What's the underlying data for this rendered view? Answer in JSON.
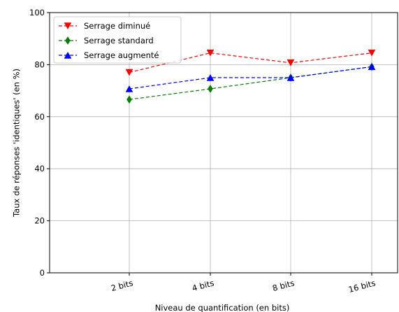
{
  "chart_data": {
    "type": "line",
    "categories": [
      "2 bits",
      "4 bits",
      "8 bits",
      "16 bits"
    ],
    "series": [
      {
        "name": "Serrage diminué",
        "values": [
          77,
          84.5,
          80.7,
          84.5
        ],
        "color": "#ff0000",
        "marker": "triangle-down"
      },
      {
        "name": "Serrage standard",
        "values": [
          66.6,
          70.7,
          75,
          79.2
        ],
        "color": "#008000",
        "marker": "diamond"
      },
      {
        "name": "Serrage augmenté",
        "values": [
          70.7,
          75,
          75,
          79.2
        ],
        "color": "#0000ff",
        "marker": "triangle-up"
      }
    ],
    "xlabel": "Niveau de quantification (en bits)",
    "ylabel": "Taux de réponses 'identiques' (en %)",
    "ylim": [
      0,
      100
    ],
    "yticks": [
      0,
      20,
      40,
      60,
      80,
      100
    ],
    "grid": true,
    "line_style": "dashed",
    "legend_position": "top-left"
  }
}
